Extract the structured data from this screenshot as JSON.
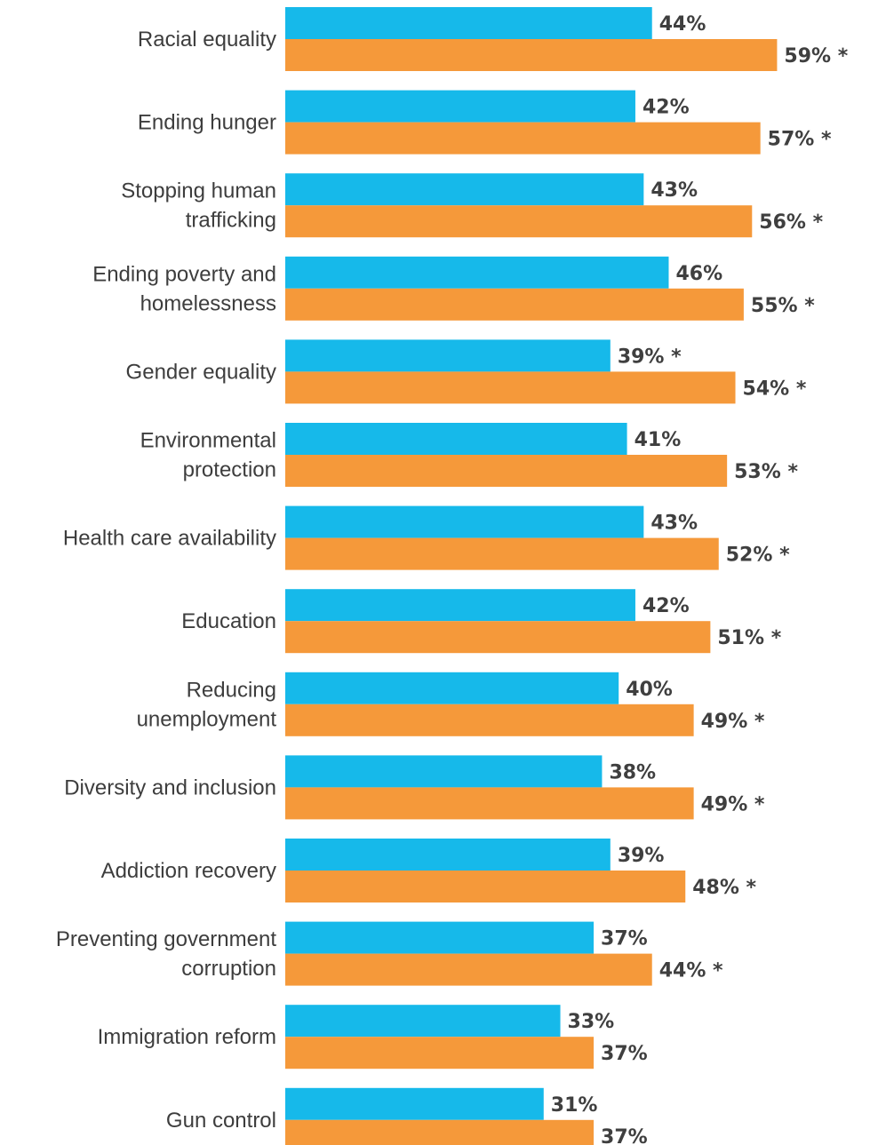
{
  "chart_data": {
    "type": "bar",
    "orientation": "horizontal",
    "categories": [
      [
        "Racial equality"
      ],
      [
        "Ending hunger"
      ],
      [
        "Stopping human",
        "trafficking"
      ],
      [
        "Ending poverty and",
        "homelessness"
      ],
      [
        "Gender equality"
      ],
      [
        "Environmental",
        "protection"
      ],
      [
        "Health care availability"
      ],
      [
        "Education"
      ],
      [
        "Reducing",
        "unemployment"
      ],
      [
        "Diversity and inclusion"
      ],
      [
        "Addiction recovery"
      ],
      [
        "Preventing government",
        "corruption"
      ],
      [
        "Immigration reform"
      ],
      [
        "Gun control"
      ]
    ],
    "series": [
      {
        "color": "#16b9ea",
        "values": [
          44,
          42,
          43,
          46,
          39,
          41,
          43,
          42,
          40,
          38,
          39,
          37,
          33,
          31
        ],
        "labels": [
          "44%",
          "42%",
          "43%",
          "46%",
          "39% *",
          "41%",
          "43%",
          "42%",
          "40%",
          "38%",
          "39%",
          "37%",
          "33%",
          "31%"
        ]
      },
      {
        "color": "#f5993a",
        "values": [
          59,
          57,
          56,
          55,
          54,
          53,
          52,
          51,
          49,
          49,
          48,
          44,
          37,
          37
        ],
        "labels": [
          "59% *",
          "57% *",
          "56% *",
          "55% *",
          "54% *",
          "53% *",
          "52% *",
          "51% *",
          "49% *",
          "49% *",
          "48% *",
          "44% *",
          "37%",
          "37%"
        ]
      }
    ],
    "value_unit": "%",
    "grid": false,
    "legend": "none"
  }
}
